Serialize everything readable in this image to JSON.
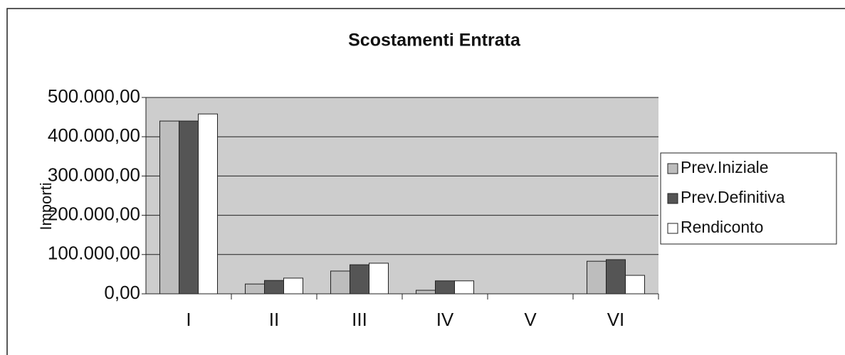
{
  "chart_data": {
    "type": "bar",
    "title": "Scostamenti Entrata",
    "y_label": "Importi",
    "categories": [
      "I",
      "II",
      "III",
      "IV",
      "V",
      "VI"
    ],
    "series": [
      {
        "name": "Prev.Iniziale",
        "color": "#bdbdbd",
        "values": [
          440000,
          25000,
          58000,
          9000,
          null,
          83000
        ]
      },
      {
        "name": "Prev.Definitiva",
        "color": "#555555",
        "values": [
          440000,
          34000,
          74000,
          33000,
          null,
          87000
        ]
      },
      {
        "name": "Rendiconto",
        "color": "#ffffff",
        "values": [
          458000,
          40000,
          78000,
          33000,
          null,
          47000
        ]
      }
    ],
    "ylim": [
      0,
      500000
    ],
    "yticks": [
      {
        "value": 0,
        "label": "0,00"
      },
      {
        "value": 100000,
        "label": "100.000,00"
      },
      {
        "value": 200000,
        "label": "200.000,00"
      },
      {
        "value": 300000,
        "label": "300.000,00"
      },
      {
        "value": 400000,
        "label": "400.000,00"
      },
      {
        "value": 500000,
        "label": "500.000,00"
      }
    ],
    "grid": true,
    "legend": "right"
  }
}
